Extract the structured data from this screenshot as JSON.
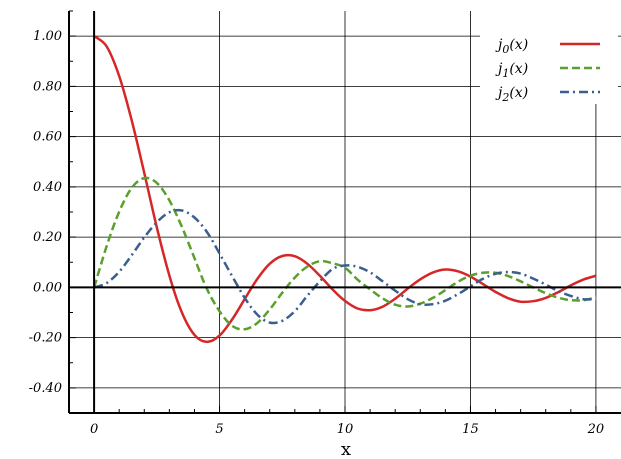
{
  "chart_data": {
    "type": "line",
    "title": "",
    "xlabel": "x",
    "ylabel": "",
    "xlim": [
      -1,
      21
    ],
    "ylim": [
      -0.5,
      1.1
    ],
    "grid": true,
    "legend_position": "top-right",
    "x_ticks": [
      0,
      5,
      10,
      15,
      20
    ],
    "x_tick_labels": [
      "0",
      "5",
      "10",
      "15",
      "20"
    ],
    "y_ticks": [
      -0.4,
      -0.2,
      0,
      0.2,
      0.4,
      0.6,
      0.8,
      1.0
    ],
    "y_tick_labels": [
      "-0.40",
      "-0.20",
      "0.00",
      "0.20",
      "0.40",
      "0.60",
      "0.80",
      "1.00"
    ],
    "x": [
      0,
      0.5,
      1,
      1.5,
      2,
      2.5,
      3,
      3.5,
      4,
      4.5,
      5,
      5.5,
      6,
      6.5,
      7,
      7.5,
      8,
      8.5,
      9,
      9.5,
      10,
      10.5,
      11,
      11.5,
      12,
      12.5,
      13,
      13.5,
      14,
      14.5,
      15,
      15.5,
      16,
      16.5,
      17,
      17.5,
      18,
      18.5,
      19,
      19.5,
      20
    ],
    "series": [
      {
        "name": "j_0(x)",
        "color": "#d62728",
        "dash": "solid",
        "values": [
          1.0,
          0.959,
          0.841,
          0.665,
          0.455,
          0.239,
          0.047,
          -0.1,
          -0.189,
          -0.217,
          -0.192,
          -0.128,
          -0.047,
          0.033,
          0.094,
          0.125,
          0.124,
          0.094,
          0.046,
          -0.008,
          -0.054,
          -0.084,
          -0.091,
          -0.077,
          -0.045,
          -0.005,
          0.032,
          0.059,
          0.071,
          0.064,
          0.043,
          0.013,
          -0.018,
          -0.043,
          -0.057,
          -0.055,
          -0.042,
          -0.019,
          0.008,
          0.031,
          0.046
        ]
      },
      {
        "name": "j_1(x)",
        "color": "#5aa02c",
        "dash": "dash",
        "values": [
          0.0,
          0.164,
          0.301,
          0.396,
          0.435,
          0.416,
          0.346,
          0.241,
          0.116,
          -0.007,
          -0.095,
          -0.153,
          -0.167,
          -0.142,
          -0.088,
          -0.021,
          0.039,
          0.083,
          0.104,
          0.096,
          0.078,
          0.031,
          -0.008,
          -0.044,
          -0.069,
          -0.076,
          -0.065,
          -0.042,
          -0.011,
          0.022,
          0.047,
          0.058,
          0.058,
          0.045,
          0.024,
          0.0,
          -0.023,
          -0.041,
          -0.051,
          -0.051,
          -0.04
        ]
      },
      {
        "name": "j_2(x)",
        "color": "#3a5f8f",
        "dash": "dashdot",
        "values": [
          0.0,
          0.017,
          0.062,
          0.128,
          0.199,
          0.259,
          0.299,
          0.306,
          0.278,
          0.22,
          0.135,
          0.045,
          -0.041,
          -0.108,
          -0.14,
          -0.133,
          -0.095,
          -0.033,
          0.024,
          0.073,
          0.087,
          0.082,
          0.06,
          0.024,
          -0.013,
          -0.047,
          -0.067,
          -0.067,
          -0.053,
          -0.027,
          0.004,
          0.034,
          0.054,
          0.061,
          0.055,
          0.035,
          0.011,
          -0.015,
          -0.034,
          -0.047,
          -0.046
        ]
      }
    ]
  }
}
